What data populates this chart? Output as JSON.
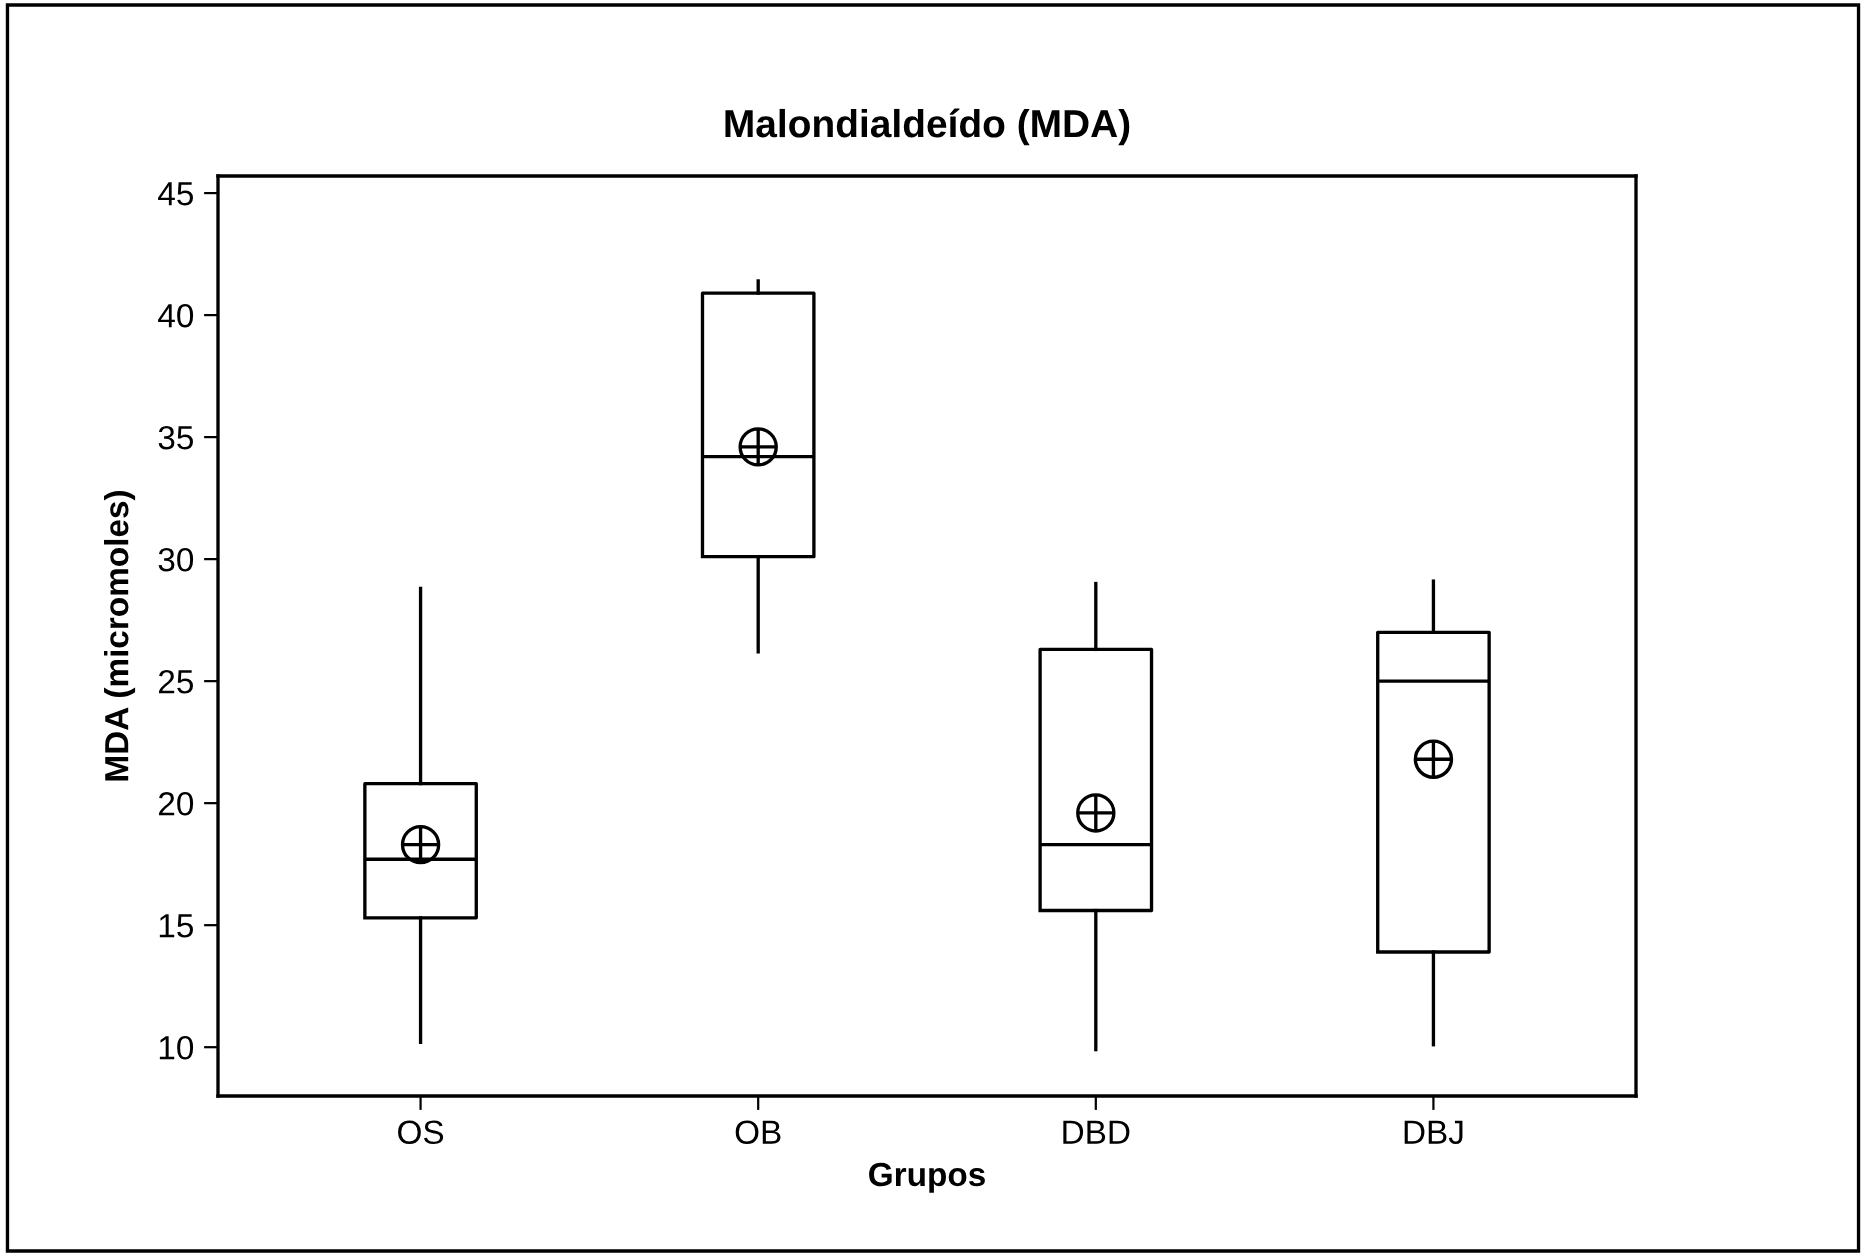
{
  "chart_data": {
    "type": "box",
    "title": "Malondialdeído (MDA)",
    "xlabel": "Grupos",
    "ylabel": "MDA (micromoles)",
    "categories": [
      "OS",
      "OB",
      "DBD",
      "DBJ"
    ],
    "boxes": [
      {
        "low": 10.2,
        "q1": 15.3,
        "median": 17.7,
        "q3": 20.8,
        "high": 28.8,
        "mean": 18.3
      },
      {
        "low": 26.2,
        "q1": 30.1,
        "median": 34.2,
        "q3": 40.9,
        "high": 41.4,
        "mean": 34.6
      },
      {
        "low": 9.9,
        "q1": 15.6,
        "median": 18.3,
        "q3": 26.3,
        "high": 29.0,
        "mean": 19.6
      },
      {
        "low": 10.1,
        "q1": 13.9,
        "median": 25.0,
        "q3": 27.0,
        "high": 29.1,
        "mean": 21.8
      }
    ],
    "color": "#000000",
    "ylim": [
      8.0,
      45.7
    ],
    "yticks": [
      10,
      15,
      20,
      25,
      30,
      35,
      40,
      45
    ],
    "grid": false
  }
}
